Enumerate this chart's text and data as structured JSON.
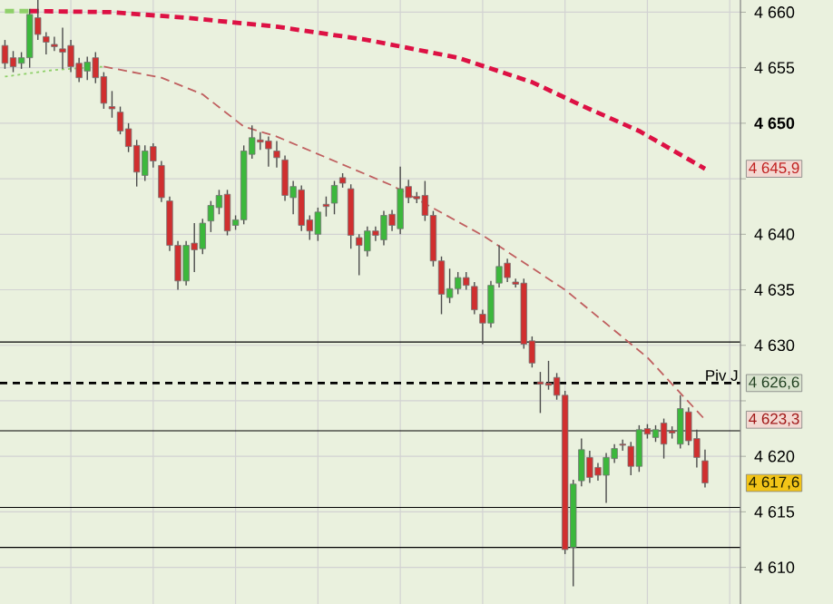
{
  "chart_data": {
    "type": "candlestick",
    "categories": [
      null,
      null,
      null,
      null,
      null,
      null,
      null,
      null,
      null,
      null,
      null,
      null,
      null,
      null,
      null,
      null,
      null,
      null,
      null,
      null,
      null,
      null,
      null,
      null,
      null,
      null,
      null,
      null,
      null,
      null,
      null,
      null,
      null,
      null,
      null,
      null,
      null,
      null,
      null,
      null,
      null,
      null,
      null,
      null,
      null,
      null,
      null,
      null,
      null,
      null,
      null,
      null,
      null,
      null,
      null,
      null,
      null,
      null,
      null,
      null,
      null,
      null,
      null,
      null,
      null,
      null,
      null,
      null,
      null,
      null,
      null,
      null,
      null,
      null,
      null,
      null,
      null,
      null,
      null,
      null,
      null,
      null,
      null,
      null,
      null,
      null
    ],
    "ohlc": [
      [
        4657.0,
        4657.5,
        4654.9,
        4655.4
      ],
      [
        4655.9,
        4656.5,
        4654.6,
        4655.1
      ],
      [
        4655.4,
        4656.4,
        4654.9,
        4655.9
      ],
      [
        4655.9,
        4660.3,
        4655.0,
        4659.8
      ],
      [
        4659.5,
        4661.1,
        4657.5,
        4658.0
      ],
      [
        4657.8,
        4658.2,
        4656.2,
        4657.3
      ],
      [
        4657.1,
        4657.8,
        4656.5,
        4656.9
      ],
      [
        4656.7,
        4658.6,
        4654.9,
        4656.4
      ],
      [
        4657.0,
        4657.5,
        4654.6,
        4655.1
      ],
      [
        4655.4,
        4655.9,
        4653.7,
        4654.1
      ],
      [
        4654.7,
        4656.0,
        4653.9,
        4655.5
      ],
      [
        4655.9,
        4656.4,
        4653.6,
        4654.1
      ],
      [
        4654.2,
        4654.6,
        4651.3,
        4651.8
      ],
      [
        4651.5,
        4652.9,
        4650.5,
        4651.3
      ],
      [
        4651.0,
        4651.5,
        4649.0,
        4649.3
      ],
      [
        4649.5,
        4650.0,
        4647.4,
        4647.9
      ],
      [
        4648.0,
        4648.5,
        4644.3,
        4645.6
      ],
      [
        4645.3,
        4648.0,
        4644.8,
        4647.5
      ],
      [
        4647.9,
        4648.2,
        4646.0,
        4646.6
      ],
      [
        4646.2,
        4646.6,
        4642.9,
        4643.3
      ],
      [
        4643.0,
        4643.4,
        4638.5,
        4639.0
      ],
      [
        4639.0,
        4639.4,
        4635.0,
        4635.8
      ],
      [
        4635.8,
        4639.4,
        4635.4,
        4639.0
      ],
      [
        4639.2,
        4641.0,
        4636.6,
        4638.6
      ],
      [
        4638.7,
        4641.4,
        4638.2,
        4641.0
      ],
      [
        4641.2,
        4643.0,
        4640.2,
        4642.6
      ],
      [
        4642.4,
        4644.0,
        4641.8,
        4643.5
      ],
      [
        4643.6,
        4644.0,
        4639.9,
        4640.3
      ],
      [
        4640.8,
        4641.7,
        4640.4,
        4641.3
      ],
      [
        4641.3,
        4648.0,
        4640.9,
        4647.5
      ],
      [
        4647.2,
        4649.8,
        4646.8,
        4648.7
      ],
      [
        4648.5,
        4649.2,
        4647.6,
        4648.3
      ],
      [
        4648.4,
        4648.8,
        4646.1,
        4647.7
      ],
      [
        4647.5,
        4648.4,
        4646.0,
        4646.9
      ],
      [
        4646.7,
        4647.1,
        4643.0,
        4643.5
      ],
      [
        4643.3,
        4644.8,
        4641.8,
        4644.3
      ],
      [
        4644.0,
        4644.4,
        4640.3,
        4640.8
      ],
      [
        4641.3,
        4641.7,
        4639.5,
        4640.3
      ],
      [
        4640.0,
        4642.4,
        4639.4,
        4642.0
      ],
      [
        4642.7,
        4643.4,
        4641.6,
        4642.5
      ],
      [
        4642.8,
        4644.8,
        4641.8,
        4644.4
      ],
      [
        4645.1,
        4645.5,
        4644.2,
        4644.6
      ],
      [
        4644.1,
        4644.5,
        4638.7,
        4639.9
      ],
      [
        4639.7,
        4640.0,
        4636.3,
        4639.0
      ],
      [
        4638.5,
        4640.7,
        4638.0,
        4640.3
      ],
      [
        4640.3,
        4640.7,
        4639.4,
        4639.9
      ],
      [
        4639.5,
        4642.1,
        4639.0,
        4641.7
      ],
      [
        4641.8,
        4642.2,
        4640.3,
        4640.8
      ],
      [
        4640.5,
        4646.1,
        4640.0,
        4644.1
      ],
      [
        4644.3,
        4644.9,
        4642.8,
        4643.3
      ],
      [
        4643.4,
        4643.8,
        4642.8,
        4643.2
      ],
      [
        4643.5,
        4644.8,
        4641.2,
        4641.7
      ],
      [
        4641.7,
        4642.1,
        4637.1,
        4637.6
      ],
      [
        4637.6,
        4638.0,
        4632.8,
        4634.6
      ],
      [
        4634.3,
        4636.9,
        4633.8,
        4635.1
      ],
      [
        4635.1,
        4636.6,
        4634.6,
        4636.1
      ],
      [
        4636.1,
        4636.6,
        4635.0,
        4635.4
      ],
      [
        4635.3,
        4635.7,
        4632.8,
        4633.2
      ],
      [
        4632.8,
        4633.2,
        4630.1,
        4632.0
      ],
      [
        4632.0,
        4635.8,
        4631.6,
        4635.4
      ],
      [
        4635.6,
        4639.0,
        4635.2,
        4637.1
      ],
      [
        4637.4,
        4637.8,
        4635.7,
        4636.1
      ],
      [
        4635.7,
        4636.0,
        4635.2,
        4635.5
      ],
      [
        4635.6,
        4636.0,
        4629.7,
        4630.1
      ],
      [
        4630.4,
        4630.8,
        4628.0,
        4628.4
      ],
      [
        4626.7,
        4627.6,
        4623.9,
        4626.5
      ],
      [
        4626.6,
        4628.6,
        4626.0,
        4626.4
      ],
      [
        4627.1,
        4627.5,
        4625.1,
        4625.5
      ],
      [
        4625.5,
        4625.9,
        4611.2,
        4611.6
      ],
      [
        4611.8,
        4617.9,
        4608.3,
        4617.5
      ],
      [
        4617.8,
        4621.6,
        4617.3,
        4620.6
      ],
      [
        4619.9,
        4620.5,
        4617.6,
        4618.1
      ],
      [
        4619.0,
        4619.4,
        4617.8,
        4618.3
      ],
      [
        4618.3,
        4620.3,
        4615.8,
        4619.9
      ],
      [
        4619.8,
        4621.1,
        4619.4,
        4620.7
      ],
      [
        4621.1,
        4621.5,
        4620.5,
        4621.0
      ],
      [
        4620.9,
        4621.3,
        4618.3,
        4619.1
      ],
      [
        4619.1,
        4622.8,
        4618.6,
        4622.4
      ],
      [
        4622.5,
        4622.9,
        4621.6,
        4622.0
      ],
      [
        4621.7,
        4622.8,
        4621.3,
        4622.4
      ],
      [
        4623.0,
        4623.4,
        4619.8,
        4621.1
      ],
      [
        4622.3,
        4622.7,
        4621.6,
        4622.1
      ],
      [
        4621.1,
        4625.5,
        4620.7,
        4624.3
      ],
      [
        4624.0,
        4624.4,
        4621.0,
        4621.4
      ],
      [
        4621.6,
        4622.4,
        4619.0,
        4619.9
      ],
      [
        4619.6,
        4620.6,
        4617.2,
        4617.6
      ]
    ],
    "colors": [
      "#d02f2f",
      "#d02f2f",
      "#3cb83c",
      "#3cb83c",
      "#d02f2f",
      "#d02f2f",
      "#d02f2f",
      "#d02f2f",
      "#d02f2f",
      "#d02f2f",
      "#3cb83c",
      "#d02f2f",
      "#d02f2f",
      "#d02f2f",
      "#d02f2f",
      "#d02f2f",
      "#d02f2f",
      "#3cb83c",
      "#d02f2f",
      "#d02f2f",
      "#d02f2f",
      "#d02f2f",
      "#3cb83c",
      "#d02f2f",
      "#3cb83c",
      "#3cb83c",
      "#3cb83c",
      "#d02f2f",
      "#3cb83c",
      "#3cb83c",
      "#3cb83c",
      "#d02f2f",
      "#d02f2f",
      "#d02f2f",
      "#d02f2f",
      "#3cb83c",
      "#d02f2f",
      "#d02f2f",
      "#3cb83c",
      "#d02f2f",
      "#3cb83c",
      "#d02f2f",
      "#d02f2f",
      "#d02f2f",
      "#3cb83c",
      "#d02f2f",
      "#3cb83c",
      "#d02f2f",
      "#3cb83c",
      "#d02f2f",
      "#d02f2f",
      "#d02f2f",
      "#d02f2f",
      "#d02f2f",
      "#3cb83c",
      "#3cb83c",
      "#d02f2f",
      "#d02f2f",
      "#d02f2f",
      "#3cb83c",
      "#3cb83c",
      "#d02f2f",
      "#d02f2f",
      "#d02f2f",
      "#d02f2f",
      "#d02f2f",
      "#d02f2f",
      "#d02f2f",
      "#d02f2f",
      "#3cb83c",
      "#3cb83c",
      "#d02f2f",
      "#d02f2f",
      "#3cb83c",
      "#3cb83c",
      "#d02f2f",
      "#d02f2f",
      "#3cb83c",
      "#d02f2f",
      "#3cb83c",
      "#d02f2f",
      "#d02f2f",
      "#3cb83c",
      "#d02f2f",
      "#d02f2f",
      "#d02f2f"
    ],
    "series": [
      {
        "type": "line",
        "color": "#8fd06a",
        "line_style": "dashed",
        "values": [
          4660.1,
          null,
          null,
          4660.1,
          null,
          null,
          null,
          null,
          null,
          null,
          null,
          null,
          null,
          null,
          null,
          null,
          null,
          null,
          null,
          null,
          null,
          null,
          null,
          null,
          null,
          null,
          null,
          null,
          null,
          null,
          null,
          null,
          null,
          null,
          null,
          null,
          null,
          null,
          null,
          null,
          null,
          null,
          null,
          null,
          null,
          null,
          null,
          null,
          null,
          null,
          null,
          null,
          null,
          null,
          null,
          null,
          null,
          null,
          null,
          null,
          null,
          null,
          null,
          null,
          null,
          null,
          null,
          null,
          null,
          null,
          null,
          null,
          null,
          null,
          null,
          null,
          null,
          null,
          null,
          null,
          null,
          null,
          null,
          null,
          null,
          null
        ]
      },
      {
        "type": "line",
        "color": "#dd1144",
        "line_style": "dashed",
        "values": [
          null,
          null,
          null,
          4660.1,
          4660.1,
          null,
          null,
          null,
          null,
          null,
          null,
          null,
          null,
          4660.0,
          null,
          null,
          null,
          null,
          null,
          null,
          null,
          null,
          4659.5,
          null,
          null,
          null,
          null,
          null,
          null,
          null,
          null,
          null,
          null,
          4658.7,
          null,
          null,
          null,
          null,
          null,
          null,
          null,
          null,
          null,
          null,
          4657.5,
          null,
          null,
          null,
          null,
          null,
          null,
          null,
          null,
          null,
          null,
          4655.9,
          null,
          null,
          null,
          null,
          null,
          null,
          null,
          null,
          4653.7,
          null,
          null,
          null,
          null,
          null,
          4651.6,
          null,
          null,
          null,
          null,
          null,
          null,
          4649.3,
          null,
          null,
          null,
          null,
          null,
          null,
          null,
          4645.9
        ]
      },
      {
        "type": "line",
        "color": "#8fd06a",
        "line_style": "dotted",
        "values": [
          4654.2,
          null,
          null,
          null,
          null,
          null,
          4654.8,
          null,
          null,
          null,
          null,
          null,
          4655.1,
          null,
          null,
          null,
          null,
          null,
          null,
          null,
          null,
          null,
          null,
          null,
          null,
          null,
          null,
          null,
          null,
          null,
          null,
          null,
          null,
          null,
          null,
          null,
          null,
          null,
          null,
          null,
          null,
          null,
          null,
          null,
          null,
          null,
          null,
          null,
          null,
          null,
          null,
          null,
          null,
          null,
          null,
          null,
          null,
          null,
          null,
          null,
          null,
          null,
          null,
          null,
          null,
          null,
          null,
          null,
          null,
          null,
          null,
          null,
          null,
          null,
          null,
          null,
          null,
          null,
          null,
          null,
          null,
          null,
          null,
          null,
          null,
          null
        ]
      },
      {
        "type": "line",
        "color": "#c06060",
        "line_style": "dashed",
        "values": [
          null,
          null,
          null,
          null,
          null,
          null,
          null,
          null,
          null,
          null,
          null,
          null,
          4655.1,
          null,
          null,
          null,
          null,
          null,
          null,
          4654.1,
          null,
          null,
          null,
          null,
          4652.6,
          null,
          null,
          null,
          null,
          4649.7,
          null,
          null,
          null,
          4648.8,
          null,
          null,
          null,
          null,
          null,
          null,
          null,
          null,
          null,
          null,
          null,
          null,
          null,
          4644.4,
          null,
          null,
          null,
          null,
          null,
          null,
          null,
          null,
          null,
          null,
          4639.9,
          null,
          null,
          null,
          null,
          null,
          null,
          null,
          null,
          null,
          4635.0,
          null,
          null,
          null,
          null,
          null,
          null,
          null,
          null,
          null,
          4628.9,
          null,
          null,
          null,
          null,
          null,
          null,
          4623.3
        ]
      }
    ],
    "ylim": [
      4606.7,
      4661.1
    ],
    "yticks": [
      {
        "value": 4610,
        "label": "4 610"
      },
      {
        "value": 4615,
        "label": "4 615"
      },
      {
        "value": 4620,
        "label": "4 620"
      },
      {
        "value": 4625,
        "label": null
      },
      {
        "value": 4630,
        "label": "4 630"
      },
      {
        "value": 4635,
        "label": "4 635"
      },
      {
        "value": 4640,
        "label": "4 640"
      },
      {
        "value": 4645,
        "label": null
      },
      {
        "value": 4650,
        "label": "**4 650**"
      },
      {
        "value": 4655,
        "label": "4 655"
      },
      {
        "value": 4660,
        "label": "4 660"
      }
    ],
    "ref_lines": [
      {
        "axis": "y",
        "value": 4630.3,
        "color": "#000000",
        "line_style": "solid"
      },
      {
        "axis": "y",
        "value": 4626.6,
        "color": "#000000",
        "line_style": "dashed",
        "label": "Piv J"
      },
      {
        "axis": "y",
        "value": 4622.3,
        "color": "#000000",
        "line_style": "solid"
      },
      {
        "axis": "y",
        "value": 4615.4,
        "color": "#000000",
        "line_style": "solid"
      },
      {
        "axis": "y",
        "value": 4611.8,
        "color": "#000000",
        "line_style": "solid"
      }
    ],
    "annotations": [
      "4 645,9",
      "4 626,6",
      "4 623,3",
      "4 617,6"
    ],
    "grid": true,
    "tick_labels": "y"
  }
}
